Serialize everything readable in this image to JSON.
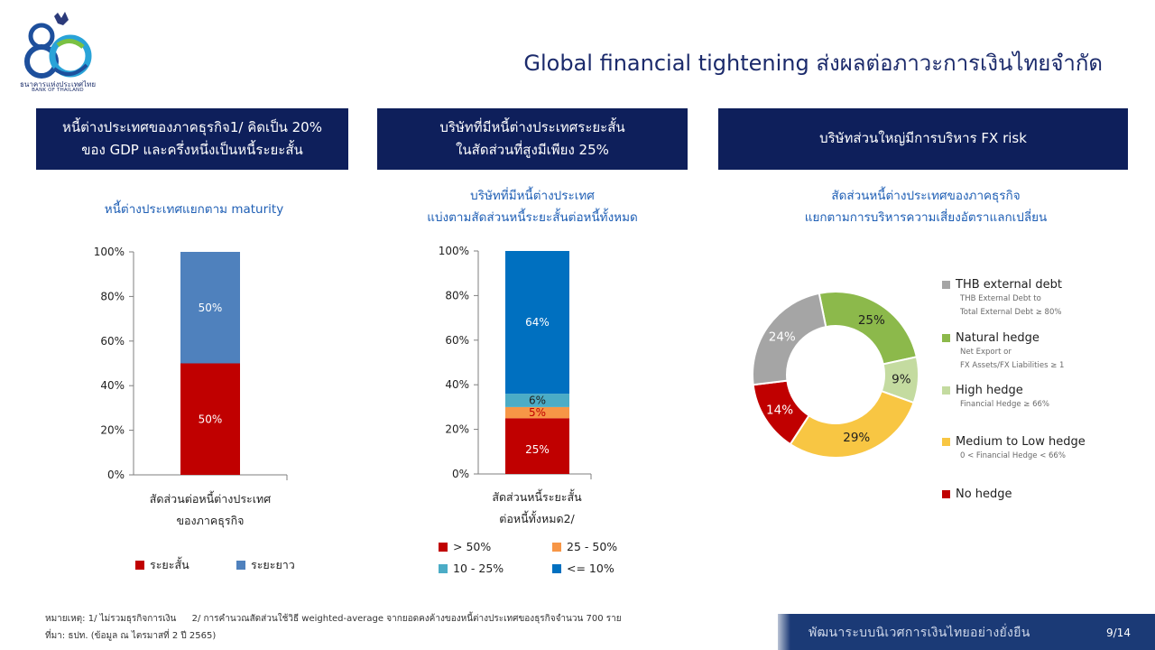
{
  "header": {
    "title": "Global financial tightening ส่งผลต่อภาวะการเงินไทยจำกัด",
    "logo_text_th": "ธนาคารแห่งประเทศไทย",
    "logo_text_en": "BANK OF THAILAND",
    "logo_number": "80"
  },
  "panels": [
    {
      "header_line1": "หนี้ต่างประเทศของภาคธุรกิจ1/ คิดเป็น 20%",
      "header_line2": "ของ GDP และครึ่งหนึ่งเป็นหนี้ระยะสั้น",
      "subtitle_line1": "หนี้ต่างประเทศแยกตาม  maturity",
      "x_label_line1": "สัดส่วนต่อหนี้ต่างประเทศ",
      "x_label_line2": "ของภาคธุรกิจ"
    },
    {
      "header_line1": "บริษัทที่มีหนี้ต่างประเทศระยะสั้น",
      "header_line2": "ในสัดส่วนที่สูงมีเพียง 25%",
      "subtitle_line1": "บริษัทที่มีหนี้ต่างประเทศ",
      "subtitle_line2": "แบ่งตามสัดส่วนหนี้ระยะสั้นต่อหนี้ทั้งหมด",
      "x_label_line1": "สัดส่วนหนี้ระยะสั้น",
      "x_label_line2": "ต่อหนี้ทั้งหมด2/"
    },
    {
      "header_line1": "บริษัทส่วนใหญ่มีการบริหาร FX risk",
      "subtitle_line1": "สัดส่วนหนี้ต่างประเทศของภาคธุรกิจ",
      "subtitle_line2": "แยกตามการบริหารความเสี่ยงอัตราแลกเปลี่ยน"
    }
  ],
  "chart_data": [
    {
      "type": "bar",
      "stacked": true,
      "categories": [
        "สัดส่วนต่อหนี้ต่างประเทศของภาคธุรกิจ"
      ],
      "y_ticks": [
        "0%",
        "20%",
        "40%",
        "60%",
        "80%",
        "100%"
      ],
      "ylim": [
        0,
        100
      ],
      "series": [
        {
          "name": "ระยะสั้น",
          "values": [
            50
          ],
          "label": "50%",
          "color": "#c00000"
        },
        {
          "name": "ระยะยาว",
          "values": [
            50
          ],
          "label": "50%",
          "color": "#4f81bd"
        }
      ],
      "legend_position": "bottom"
    },
    {
      "type": "bar",
      "stacked": true,
      "categories": [
        "สัดส่วนหนี้ระยะสั้นต่อหนี้ทั้งหมด"
      ],
      "y_ticks": [
        "0%",
        "20%",
        "40%",
        "60%",
        "80%",
        "100%"
      ],
      "ylim": [
        0,
        100
      ],
      "series": [
        {
          "name": "> 50%",
          "values": [
            25
          ],
          "label": "25%",
          "color": "#c00000"
        },
        {
          "name": "25 - 50%",
          "values": [
            5
          ],
          "label": "5%",
          "color": "#f79646"
        },
        {
          "name": "10 - 25%",
          "values": [
            6
          ],
          "label": "6%",
          "color": "#4bacc6"
        },
        {
          "name": "<= 10%",
          "values": [
            64
          ],
          "label": "64%",
          "color": "#0070c0"
        }
      ],
      "legend_position": "bottom"
    },
    {
      "type": "pie",
      "donut": true,
      "slices": [
        {
          "name": "THB external debt",
          "value": 24,
          "label": "24%",
          "color": "#a5a5a5",
          "note_line1": "THB External Debt to",
          "note_line2": "Total External Debt ≥ 80%"
        },
        {
          "name": "Natural hedge",
          "value": 25,
          "label": "25%",
          "color": "#8cb94b",
          "note_line1": "Net Export or",
          "note_line2": "FX Assets/FX Liabilities ≥ 1"
        },
        {
          "name": "High hedge",
          "value": 9,
          "label": "9%",
          "color": "#c4dba0",
          "note_line1": "Financial Hedge ≥ 66%"
        },
        {
          "name": "Medium to Low hedge",
          "value": 29,
          "label": "29%",
          "color": "#f8c643",
          "note_line1": "0 < Financial Hedge < 66%"
        },
        {
          "name": "No hedge",
          "value": 14,
          "label": "14%",
          "color": "#c00000"
        }
      ],
      "legend_position": "right"
    }
  ],
  "footnote": {
    "line1_a": "หมายเหตุ: 1/ ไม่รวมธุรกิจการเงิน",
    "line1_b": "2/ การคำนวณสัดส่วนใช้วิธี weighted-average จากยอดคงค้างของหนี้ต่างประเทศของธุรกิจจำนวน 700 ราย",
    "line2": "ที่มา: ธปท. (ข้อมูล ณ ไตรมาสที่ 2 ปี 2565)"
  },
  "footer": {
    "slogan": "พัฒนาระบบนิเวศการเงินไทยอย่างยั่งยืน",
    "page": "9/14"
  }
}
